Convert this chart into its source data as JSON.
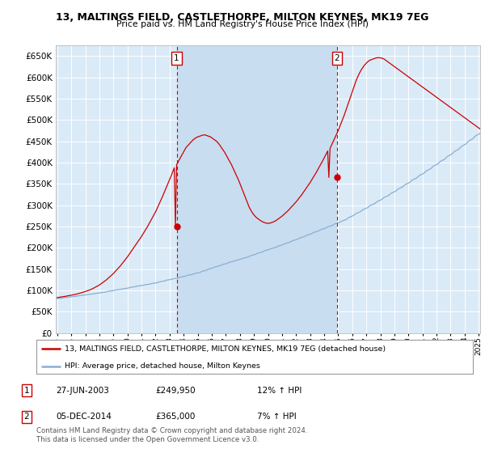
{
  "title": "13, MALTINGS FIELD, CASTLETHORPE, MILTON KEYNES, MK19 7EG",
  "subtitle": "Price paid vs. HM Land Registry's House Price Index (HPI)",
  "yticks": [
    0,
    50000,
    100000,
    150000,
    200000,
    250000,
    300000,
    350000,
    400000,
    450000,
    500000,
    550000,
    600000,
    650000
  ],
  "ylim": [
    0,
    675000
  ],
  "bg_color": "#daeaf7",
  "grid_color": "#ffffff",
  "red_color": "#cc0000",
  "blue_color": "#88afd4",
  "shade_color": "#c8ddf0",
  "legend_label_red": "13, MALTINGS FIELD, CASTLETHORPE, MILTON KEYNES, MK19 7EG (detached house)",
  "legend_label_blue": "HPI: Average price, detached house, Milton Keynes",
  "annotation1_label": "1",
  "annotation1_date": "27-JUN-2003",
  "annotation1_price": "£249,950",
  "annotation1_pct": "12% ↑ HPI",
  "annotation2_label": "2",
  "annotation2_date": "05-DEC-2014",
  "annotation2_price": "£365,000",
  "annotation2_pct": "7% ↑ HPI",
  "footer": "Contains HM Land Registry data © Crown copyright and database right 2024.\nThis data is licensed under the Open Government Licence v3.0.",
  "x_start_year": 1995,
  "x_end_year": 2025,
  "purchase1_year": 2003.5,
  "purchase1_price": 249950,
  "purchase2_year": 2014.92,
  "purchase2_price": 365000,
  "hpi_monthly": [
    80642,
    80965,
    81288,
    81611,
    81934,
    82258,
    82836,
    83161,
    83487,
    83813,
    84139,
    84466,
    84792,
    85119,
    85447,
    85775,
    86103,
    86432,
    87116,
    87446,
    87777,
    88108,
    88439,
    88771,
    89104,
    89760,
    90095,
    90431,
    90767,
    91105,
    91442,
    92121,
    92461,
    92802,
    93143,
    93485,
    93827,
    94512,
    94856,
    95200,
    95545,
    95891,
    96237,
    97278,
    97973,
    98320,
    98669,
    99018,
    99368,
    100070,
    100772,
    101125,
    101479,
    101833,
    102188,
    102898,
    103610,
    103967,
    104325,
    104684,
    105043,
    105764,
    106487,
    107213,
    107577,
    107941,
    108307,
    109040,
    109774,
    110143,
    110512,
    110883,
    111253,
    111625,
    112370,
    113118,
    113493,
    113869,
    114246,
    114623,
    115380,
    116141,
    116522,
    116904,
    117287,
    117671,
    118441,
    119588,
    120362,
    120751,
    121141,
    121531,
    122314,
    123484,
    124282,
    124683,
    125086,
    125489,
    126298,
    127115,
    127526,
    127937,
    128350,
    128763,
    129592,
    130802,
    131623,
    132046,
    132470,
    132895,
    133749,
    134998,
    135836,
    136257,
    136678,
    137100,
    137946,
    139207,
    140059,
    140487,
    140915,
    141344,
    142203,
    143476,
    144752,
    145392,
    146034,
    146676,
    147963,
    149258,
    150558,
    151210,
    151864,
    152518,
    153830,
    155149,
    155811,
    156474,
    157138,
    157803,
    159136,
    160476,
    161149,
    161823,
    162497,
    163173,
    164527,
    165889,
    166572,
    167256,
    167941,
    168627,
    169176,
    170558,
    171252,
    171950,
    172649,
    173349,
    174752,
    175459,
    176167,
    176877,
    177588,
    178300,
    179727,
    181162,
    181882,
    182604,
    183327,
    184051,
    185503,
    186962,
    187694,
    188428,
    189163,
    189899,
    191376,
    192860,
    193605,
    194351,
    195098,
    195846,
    197347,
    198140,
    198902,
    199650,
    200400,
    201151,
    202657,
    204170,
    204929,
    205689,
    206450,
    207213,
    208742,
    210279,
    211051,
    211824,
    212598,
    213374,
    214930,
    216493,
    217278,
    218064,
    218851,
    219640,
    221221,
    222809,
    223606,
    224404,
    225204,
    226004,
    227609,
    229221,
    230030,
    230841,
    231652,
    232465,
    234096,
    235735,
    236558,
    237382,
    238207,
    239033,
    240690,
    242355,
    243191,
    244028,
    244866,
    245706,
    247390,
    249082,
    249930,
    250779,
    251630,
    252482,
    254190,
    255906,
    256767,
    257629,
    258493,
    259357,
    261092,
    262181,
    263273,
    264369,
    265468,
    266570,
    268782,
    271005,
    272120,
    273238,
    274359,
    275483,
    277738,
    280005,
    281143,
    282284,
    283428,
    284574,
    286875,
    289187,
    290347,
    291509,
    292673,
    293840,
    296180,
    298533,
    299714,
    300898,
    302084,
    303272,
    305655,
    308051,
    309254,
    310459,
    311667,
    312877,
    315304,
    317744,
    318969,
    320196,
    321426,
    322659,
    325130,
    327615,
    328863,
    330113,
    331366,
    332622,
    335142,
    337676,
    338948,
    340223,
    341501,
    342782,
    345352,
    347935,
    349232,
    350531,
    351833,
    353138,
    355757,
    358390,
    359712,
    361037,
    362365,
    363695,
    366364,
    369047,
    370394,
    371743,
    373096,
    374451,
    377170,
    379904,
    381276,
    382651,
    384029,
    385410,
    388181,
    390967,
    392365,
    393766,
    395171,
    396578,
    399403,
    402244,
    403669,
    405098,
    406530,
    407965,
    410844,
    413739,
    415192,
    416648,
    418108,
    419570,
    422506,
    425459,
    426940,
    428425,
    429912,
    431402,
    434393,
    437400,
    438909,
    440421,
    441937,
    443456,
    446504,
    449570,
    451108,
    452649,
    454194,
    455741,
    458847,
    461970,
    463537,
    465108,
    466682,
    468259,
    471424,
    474607,
    476203,
    477803,
    479406,
    481012,
    484235,
    487476,
    489102,
    490731,
    492364,
    494000
  ],
  "red_monthly": [
    83000,
    83400,
    83800,
    84200,
    84600,
    85000,
    85500,
    86000,
    86500,
    87000,
    87500,
    88000,
    88500,
    89000,
    89600,
    90200,
    90800,
    91400,
    92200,
    93000,
    93800,
    94600,
    95400,
    96200,
    97200,
    98200,
    99200,
    100200,
    101200,
    102200,
    103500,
    105000,
    106500,
    108000,
    109500,
    111000,
    112500,
    114500,
    116500,
    118500,
    120500,
    122500,
    124500,
    127000,
    129500,
    132000,
    134500,
    137000,
    139500,
    142500,
    145500,
    148500,
    151500,
    154500,
    157500,
    161000,
    164500,
    168000,
    171500,
    175000,
    178500,
    182500,
    186500,
    190500,
    194500,
    198500,
    202500,
    206500,
    210500,
    214500,
    218500,
    222500,
    226500,
    231000,
    235500,
    240000,
    244500,
    249000,
    254000,
    259000,
    264000,
    269000,
    274000,
    279000,
    284000,
    290000,
    296000,
    302000,
    308000,
    314000,
    320500,
    327000,
    333500,
    340000,
    346500,
    353000,
    359500,
    366500,
    373500,
    380500,
    387500,
    249950,
    395000,
    400000,
    405000,
    410000,
    415000,
    420000,
    425000,
    430000,
    435000,
    438000,
    441000,
    444000,
    447000,
    450000,
    453000,
    455000,
    457000,
    459000,
    460000,
    461000,
    462000,
    463000,
    464000,
    464500,
    465000,
    464000,
    463000,
    462000,
    461000,
    460000,
    458000,
    456000,
    454000,
    452000,
    450000,
    447000,
    444000,
    440000,
    436000,
    432000,
    428000,
    424000,
    419000,
    414000,
    409000,
    404000,
    399000,
    394000,
    388000,
    382000,
    376000,
    370000,
    364000,
    358000,
    351000,
    344000,
    337000,
    330000,
    323000,
    316000,
    309000,
    302000,
    295000,
    290000,
    285000,
    281000,
    277000,
    274000,
    271000,
    269000,
    267000,
    265000,
    263000,
    261500,
    260000,
    259000,
    258000,
    257500,
    257000,
    257500,
    258000,
    259000,
    260000,
    261000,
    262500,
    264000,
    266000,
    268000,
    270000,
    272000,
    274000,
    276500,
    279000,
    281500,
    284000,
    286500,
    289500,
    292500,
    295500,
    298500,
    301500,
    304500,
    307500,
    311000,
    314500,
    318000,
    321500,
    325000,
    329000,
    333000,
    337000,
    341000,
    345000,
    349000,
    353000,
    357500,
    362000,
    366500,
    371000,
    375500,
    380500,
    385500,
    390500,
    395500,
    400500,
    405500,
    410500,
    416000,
    421500,
    427000,
    365000,
    433000,
    439000,
    445000,
    451000,
    457000,
    463000,
    469000,
    475000,
    482000,
    489000,
    496000,
    503000,
    510000,
    518000,
    526000,
    534000,
    542000,
    550000,
    558000,
    566000,
    574000,
    582000,
    590000,
    597000,
    603000,
    609000,
    614000,
    619000,
    623000,
    627000,
    630000,
    633000,
    636000,
    638000,
    640000,
    641000,
    642000,
    643000,
    644000,
    645000,
    645500,
    646000,
    646000,
    645500,
    645000,
    644000,
    643000,
    641000,
    639000,
    637000,
    635000,
    633000,
    631000,
    629000,
    627000,
    625000,
    623000,
    621000,
    619000,
    617000,
    615000,
    613000,
    611000,
    609000,
    607000,
    605000,
    603000,
    601000,
    599000,
    597000,
    595000,
    593000,
    591000,
    589000,
    587000,
    585000,
    583000,
    581000,
    579000,
    577000,
    575000,
    573000,
    571000,
    569000,
    567000,
    565000,
    563000,
    561000,
    559000,
    557000,
    555000,
    553000,
    551000,
    549000,
    547000,
    545000,
    543000,
    541000,
    539000,
    537000,
    535000,
    533000,
    531000,
    529000,
    527000,
    525000,
    523000,
    521000,
    519000,
    517000,
    515000,
    513000,
    511000,
    509000,
    507000,
    505000,
    503000,
    501000,
    499000,
    497000,
    495000,
    493000,
    491000,
    489000,
    487000,
    485000,
    483000,
    481000,
    479000,
    477000,
    475000,
    473000,
    471000,
    469000,
    467000,
    465000,
    463000,
    461000,
    459000,
    457000,
    455000,
    453000,
    451000,
    449000,
    447000,
    445000,
    443000,
    441000,
    439000,
    437000,
    435000
  ]
}
